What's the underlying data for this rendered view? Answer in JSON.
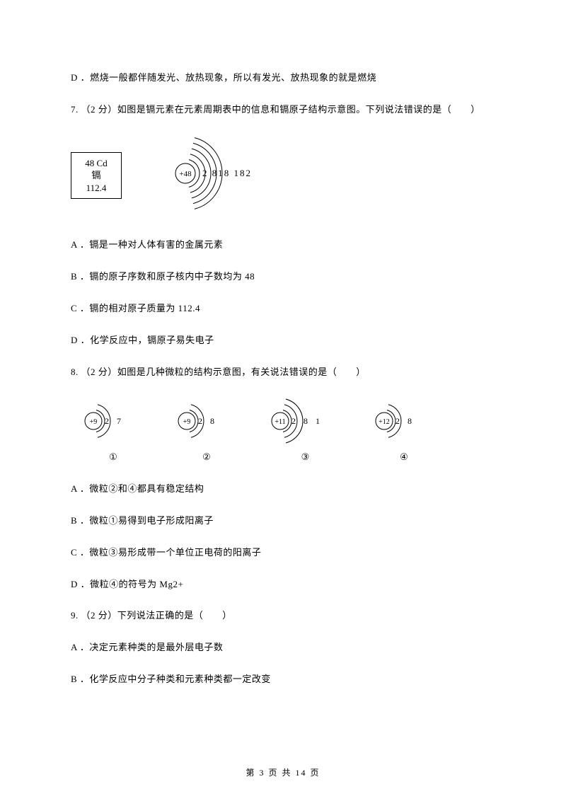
{
  "q6": {
    "optD": "D ．燃烧一般都伴随发光、放热现象，所以有发光、放热现象的就是燃烧"
  },
  "q7": {
    "stem": "7. （2 分）如图是镉元素在元素周期表中的信息和镉原子结构示意图。下列说法错误的是（　　）",
    "element": {
      "top": "48    Cd",
      "name": "镉",
      "mass": "112.4"
    },
    "atom": {
      "nucleus": "+48",
      "shells": "2 818 182",
      "shell_radii": [
        20,
        28,
        36,
        44,
        52
      ]
    },
    "optA": "A ．镉是一种对人体有害的金属元素",
    "optB": "B ．镉的原子序数和原子核内中子数均为 48",
    "optC": "C ．镉的相对原子质量为 112.4",
    "optD": "D ．化学反应中，镉原子易失电子"
  },
  "q8": {
    "stem": "8. （2 分）如图是几种微粒的结构示意图，有关说法错误的是（　　）",
    "particles": [
      {
        "nucleus": "+9",
        "shells": "2 7",
        "label": "①",
        "radii": [
          16,
          24
        ]
      },
      {
        "nucleus": "+9",
        "shells": "2 8",
        "label": "②",
        "radii": [
          16,
          24
        ]
      },
      {
        "nucleus": "+11",
        "shells": "2 8 1",
        "label": "③",
        "radii": [
          16,
          24,
          32
        ]
      },
      {
        "nucleus": "+12",
        "shells": "2 8",
        "label": "④",
        "radii": [
          16,
          24
        ]
      }
    ],
    "optA": "A ．微粒②和④都具有稳定结构",
    "optB": "B ．微粒①易得到电子形成阳离子",
    "optC": "C ．微粒③易形成带一个单位正电荷的阳离子",
    "optD": "D ．微粒④的符号为 Mg2+"
  },
  "q9": {
    "stem": "9. （2 分）下列说法正确的是（　　）",
    "optA": "A ．决定元素种类的是最外层电子数",
    "optB": "B ．化学反应中分子种类和元素种类都一定改变"
  },
  "footer": "第 3 页 共 14 页",
  "colors": {
    "text": "#000000",
    "background": "#ffffff",
    "stroke": "#000000"
  }
}
